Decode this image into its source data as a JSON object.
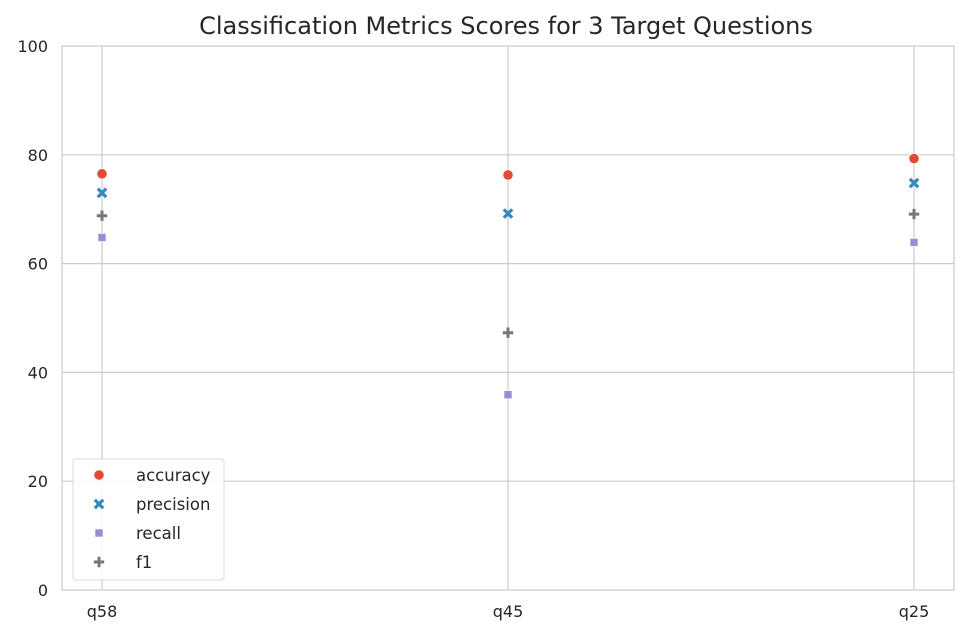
{
  "chart_data": {
    "type": "scatter",
    "title": "Classification Metrics Scores for 3 Target Questions",
    "xlabel": "",
    "ylabel": "",
    "categories": [
      "q58",
      "q45",
      "q25"
    ],
    "ylim": [
      0,
      100
    ],
    "yticks": [
      0,
      20,
      40,
      60,
      80,
      100
    ],
    "grid": true,
    "legend_position": "lower-left",
    "series": [
      {
        "name": "accuracy",
        "marker": "circle",
        "color": "#e24a33",
        "values": [
          76.5,
          76.3,
          79.3
        ]
      },
      {
        "name": "precision",
        "marker": "x",
        "color": "#348abd",
        "values": [
          73.0,
          69.2,
          74.8
        ]
      },
      {
        "name": "recall",
        "marker": "square",
        "color": "#988ed5",
        "values": [
          64.8,
          35.9,
          63.9
        ]
      },
      {
        "name": "f1",
        "marker": "plus",
        "color": "#777777",
        "values": [
          68.8,
          47.3,
          69.1
        ]
      }
    ]
  }
}
